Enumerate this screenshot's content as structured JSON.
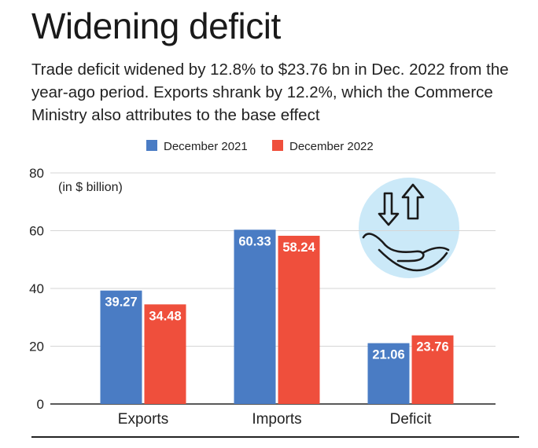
{
  "header": {
    "title": "Widening deficit",
    "subtitle": "Trade deficit widened by 12.8% to $23.76 bn in Dec. 2022 from the year-ago period. Exports shrank by 12.2%, which the Commerce Ministry also attributes to the base effect"
  },
  "icon": "hand-with-up-down-arrows-icon",
  "chart_data": {
    "type": "bar",
    "categories": [
      "Exports",
      "Imports",
      "Deficit"
    ],
    "series": [
      {
        "name": "December 2021",
        "color": "#4a7cc4",
        "values": [
          39.27,
          60.33,
          21.06
        ],
        "labels": [
          "39.27",
          "60.33",
          "21.06"
        ]
      },
      {
        "name": "December 2022",
        "color": "#ef4f3c",
        "values": [
          34.48,
          58.24,
          23.76
        ],
        "labels": [
          "34.48",
          "58.24",
          "23.76"
        ]
      }
    ],
    "ylim": [
      0,
      80
    ],
    "yticks": [
      "0",
      "20",
      "40",
      "60",
      "80"
    ],
    "unit_note": "(in $ billion)",
    "grid": true,
    "legend_position": "top-center"
  }
}
